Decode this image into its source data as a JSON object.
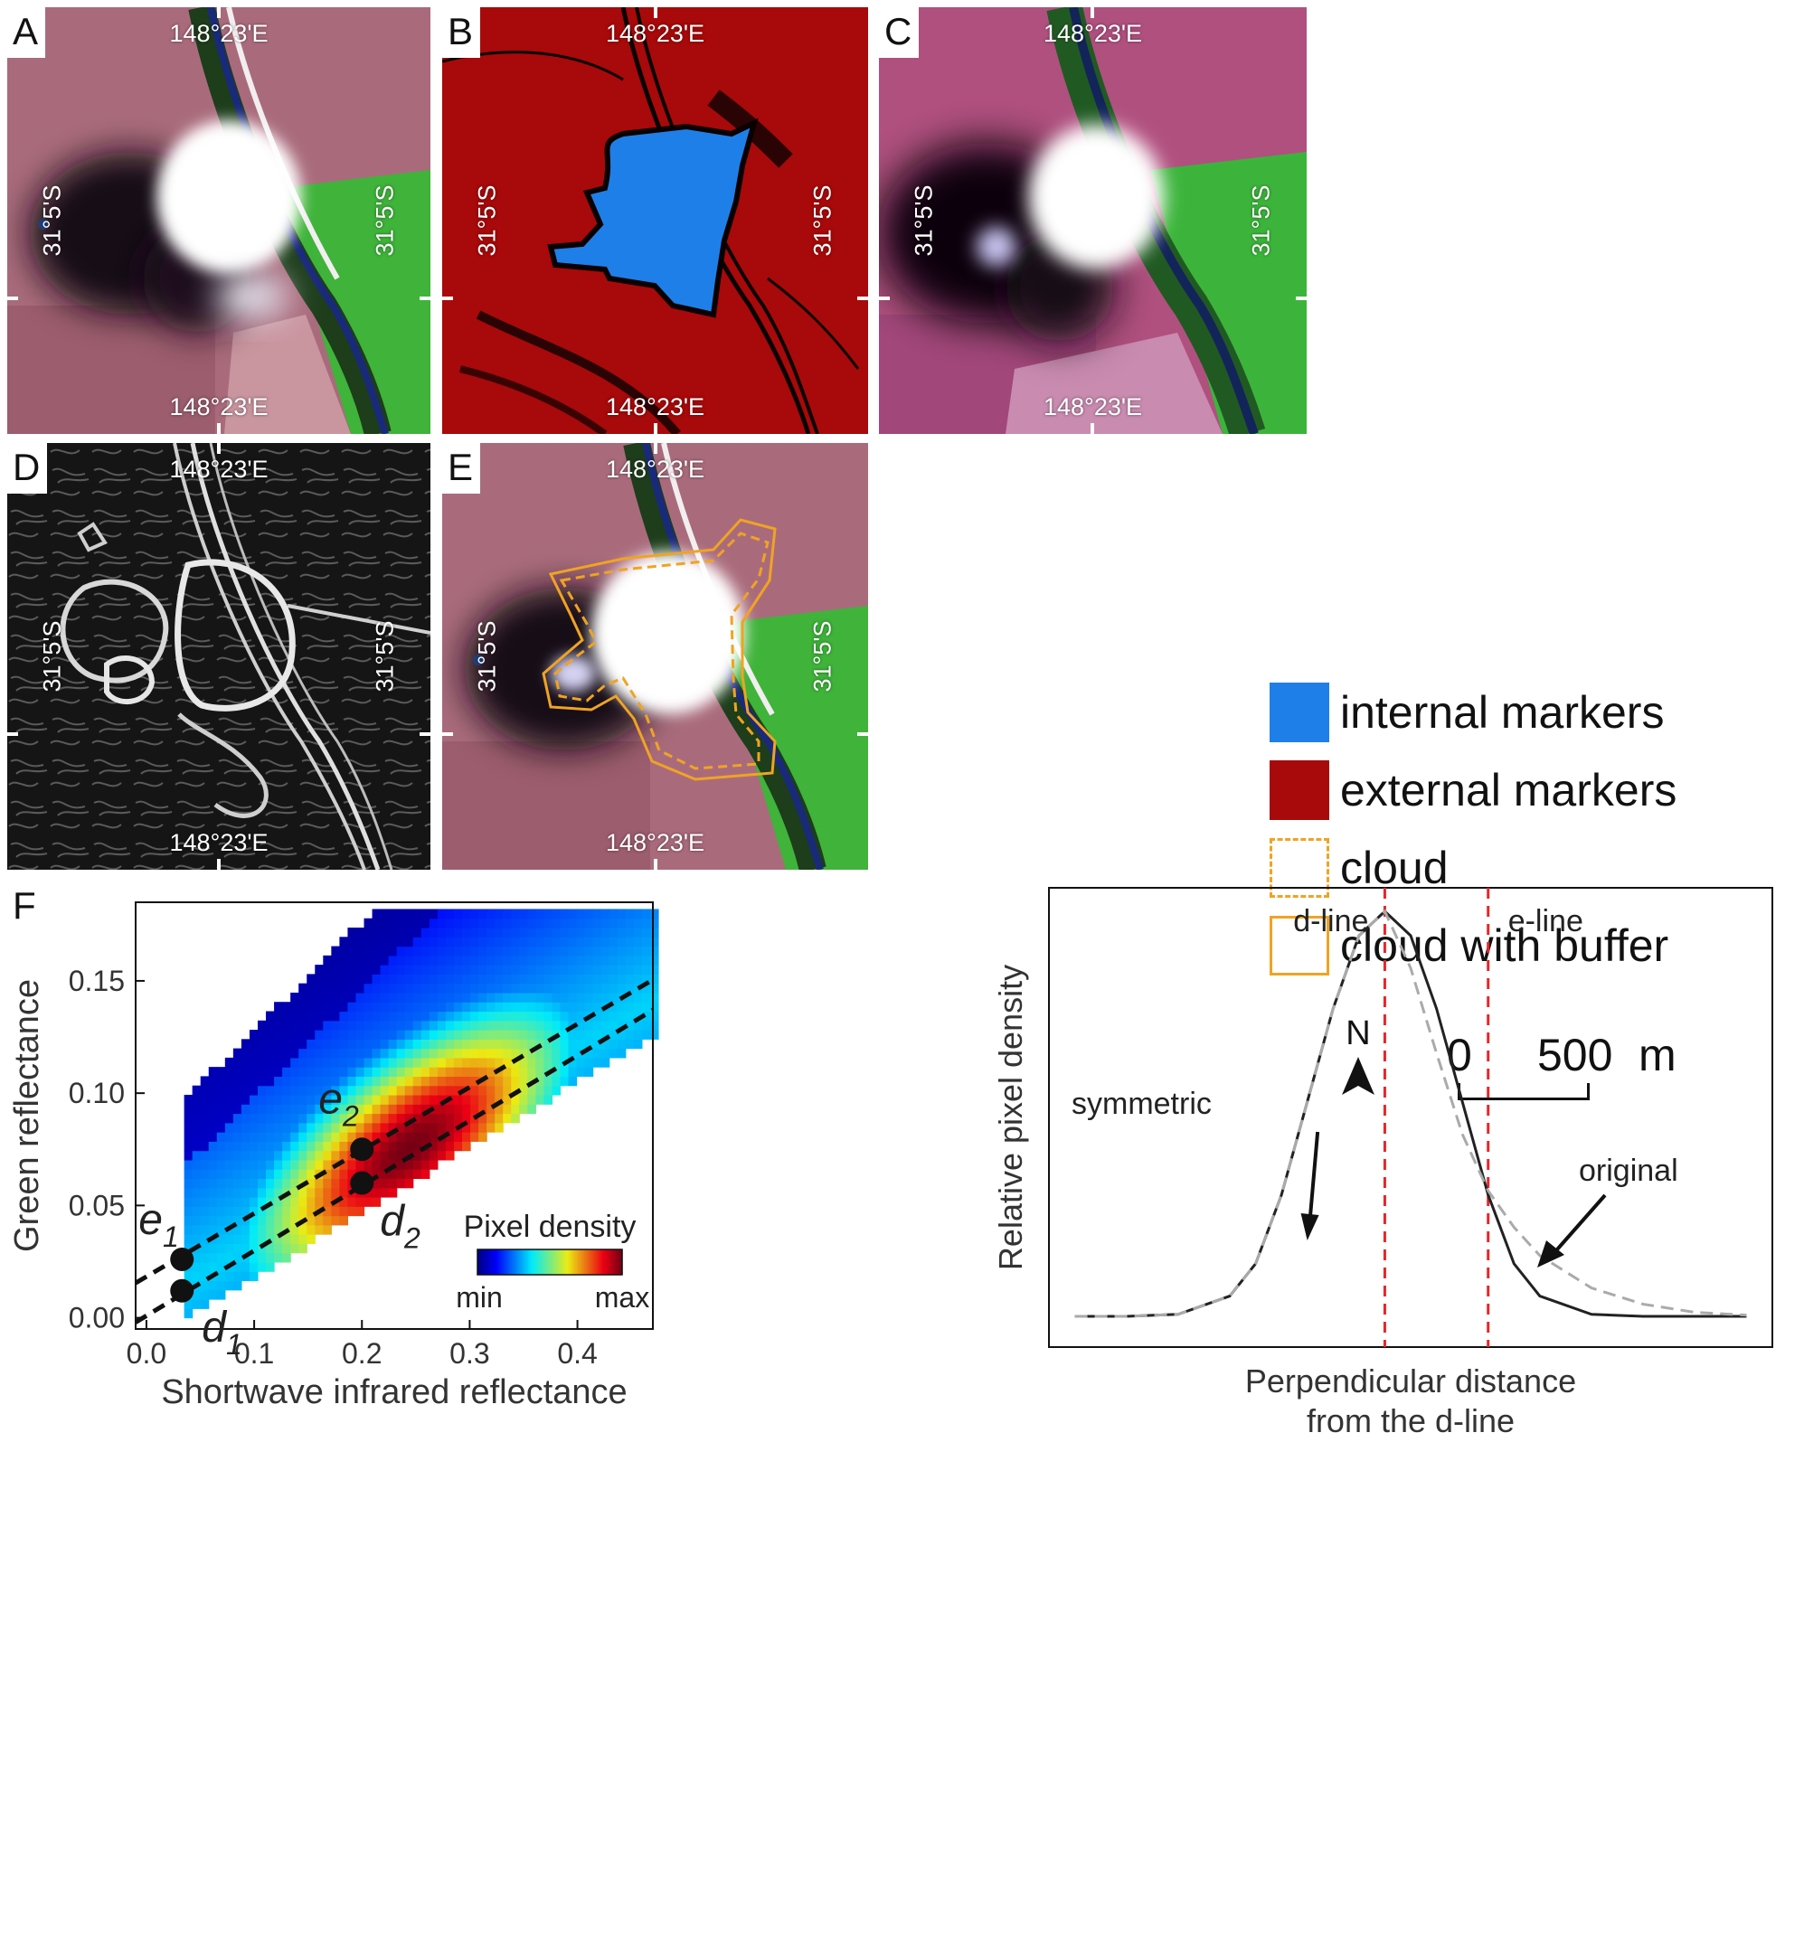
{
  "panels": [
    {
      "label": "A",
      "coord_top": "148°23'E",
      "coord_bottom": "148°23'E",
      "coord_left": "31°5'S",
      "coord_right": "31°5'S"
    },
    {
      "label": "B",
      "coord_top": "148°23'E",
      "coord_bottom": "148°23'E",
      "coord_left": "31°5'S",
      "coord_right": "31°5'S"
    },
    {
      "label": "C",
      "coord_top": "148°23'E",
      "coord_bottom": "148°23'E",
      "coord_left": "31°5'S",
      "coord_right": "31°5'S"
    },
    {
      "label": "D",
      "coord_top": "148°23'E",
      "coord_bottom": "148°23'E",
      "coord_left": "31°5'S",
      "coord_right": "31°5'S"
    },
    {
      "label": "E",
      "coord_top": "148°23'E",
      "coord_bottom": "148°23'E",
      "coord_left": "31°5'S",
      "coord_right": "31°5'S"
    }
  ],
  "legend": {
    "items": [
      {
        "label": "internal markers",
        "color": "#1f7fe8",
        "style": "fill"
      },
      {
        "label": "external markers",
        "color": "#a8090a",
        "style": "fill"
      },
      {
        "label": "cloud",
        "color": "#f0a323",
        "style": "dashed"
      },
      {
        "label": "cloud with buffer",
        "color": "#f0a323",
        "style": "solid"
      }
    ],
    "north_label": "N",
    "scale_zero": "0",
    "scale_value": "500",
    "scale_unit": "m"
  },
  "panel_f": {
    "label": "F",
    "colorbar_title": "Pixel density",
    "colorbar_min": "min",
    "colorbar_max": "max",
    "point_labels": {
      "e1": "e",
      "e1_sub": "1",
      "d1": "d",
      "d1_sub": "1",
      "e2": "e",
      "e2_sub": "2",
      "d2": "d",
      "d2_sub": "2"
    }
  },
  "chart_data": [
    {
      "type": "heatmap",
      "xlabel": "Shortwave infrared reflectance",
      "ylabel": "Green reflectance",
      "xlim": [
        -0.01,
        0.47
      ],
      "ylim": [
        -0.005,
        0.185
      ],
      "xticks": [
        "0.0",
        "0.1",
        "0.2",
        "0.3",
        "0.4"
      ],
      "yticks": [
        "0.00",
        "0.05",
        "0.10",
        "0.15"
      ],
      "points": [
        {
          "name": "e1",
          "x": 0.033,
          "y": 0.026
        },
        {
          "name": "d1",
          "x": 0.033,
          "y": 0.012
        },
        {
          "name": "e2",
          "x": 0.2,
          "y": 0.075
        },
        {
          "name": "d2",
          "x": 0.2,
          "y": 0.06
        }
      ],
      "lines": [
        {
          "name": "e-line",
          "x": [
            -0.01,
            0.47
          ],
          "y": [
            0.0155,
            0.1505
          ]
        },
        {
          "name": "d-line",
          "x": [
            -0.01,
            0.47
          ],
          "y": [
            -0.002,
            0.137
          ]
        }
      ]
    },
    {
      "type": "line",
      "xlabel": "Perpendicular distance\nfrom the d-line",
      "ylabel": "Relative pixel density",
      "annotations": [
        "d-line",
        "e-line",
        "symmetric",
        "original"
      ],
      "series": [
        {
          "name": "symmetric",
          "style": "solid",
          "x": [
            -6,
            -5,
            -4,
            -3,
            -2.5,
            -2,
            -1.5,
            -1,
            -0.5,
            0,
            0.5,
            1,
            1.5,
            2,
            2.5,
            3,
            4,
            5,
            6,
            7
          ],
          "y": [
            0,
            0,
            0.005,
            0.05,
            0.13,
            0.3,
            0.53,
            0.76,
            0.94,
            1.0,
            0.94,
            0.76,
            0.53,
            0.3,
            0.13,
            0.05,
            0.005,
            0,
            0,
            0
          ]
        },
        {
          "name": "original",
          "style": "dashed",
          "x": [
            -6,
            -5,
            -4,
            -3,
            -2.5,
            -2,
            -1.5,
            -1,
            -0.5,
            0,
            0.5,
            1,
            1.5,
            2,
            2.5,
            3,
            4,
            5,
            6,
            7
          ],
          "y": [
            0,
            0,
            0.005,
            0.05,
            0.13,
            0.3,
            0.53,
            0.76,
            0.94,
            1.0,
            0.86,
            0.65,
            0.45,
            0.31,
            0.22,
            0.15,
            0.07,
            0.03,
            0.01,
            0.003
          ]
        }
      ],
      "vlines": [
        0,
        2
      ]
    }
  ]
}
